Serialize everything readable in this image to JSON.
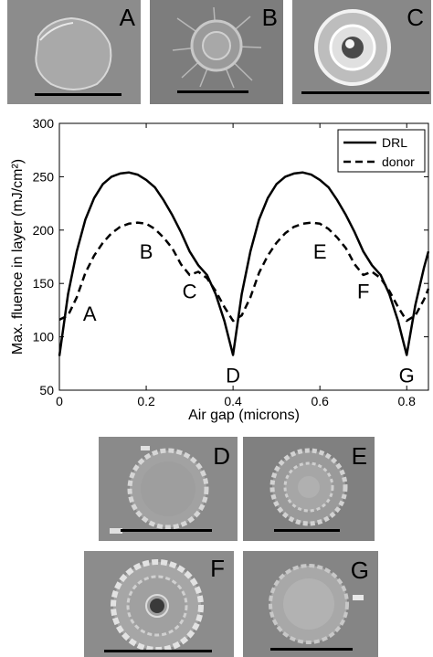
{
  "panels": {
    "A": {
      "label": "A"
    },
    "B": {
      "label": "B"
    },
    "C": {
      "label": "C"
    },
    "D": {
      "label": "D"
    },
    "E": {
      "label": "E"
    },
    "F": {
      "label": "F"
    },
    "G": {
      "label": "G"
    }
  },
  "chart_data": {
    "type": "line",
    "xlabel": "Air gap (microns)",
    "ylabel": "Max. fluence in layer (mJ/cm²)",
    "xlim": [
      0,
      0.85
    ],
    "ylim": [
      50,
      300
    ],
    "xticks": [
      "0",
      "0.2",
      "0.4",
      "0.6",
      "0.8"
    ],
    "xtick_values": [
      0,
      0.2,
      0.4,
      0.6,
      0.8
    ],
    "yticks": [
      "50",
      "100",
      "150",
      "200",
      "250",
      "300"
    ],
    "ytick_values": [
      50,
      100,
      150,
      200,
      250,
      300
    ],
    "legend_position": "top-right",
    "series": [
      {
        "name": "DRL",
        "style": "solid",
        "x": [
          0,
          0.02,
          0.04,
          0.06,
          0.08,
          0.1,
          0.12,
          0.14,
          0.16,
          0.18,
          0.2,
          0.22,
          0.24,
          0.26,
          0.28,
          0.3,
          0.32,
          0.34,
          0.36,
          0.38,
          0.4,
          0.42,
          0.44,
          0.46,
          0.48,
          0.5,
          0.52,
          0.54,
          0.56,
          0.58,
          0.6,
          0.62,
          0.64,
          0.66,
          0.68,
          0.7,
          0.72,
          0.74,
          0.76,
          0.78,
          0.8,
          0.82,
          0.84,
          0.85
        ],
        "y": [
          82,
          140,
          180,
          210,
          230,
          243,
          250,
          253,
          254,
          252,
          247,
          240,
          228,
          214,
          198,
          180,
          167,
          158,
          140,
          115,
          83,
          140,
          180,
          210,
          230,
          243,
          250,
          253,
          254,
          252,
          247,
          240,
          228,
          214,
          198,
          180,
          167,
          158,
          140,
          115,
          83,
          130,
          165,
          180
        ]
      },
      {
        "name": "donor",
        "style": "dashed",
        "x": [
          0,
          0.02,
          0.04,
          0.06,
          0.08,
          0.1,
          0.12,
          0.14,
          0.16,
          0.18,
          0.2,
          0.22,
          0.24,
          0.26,
          0.28,
          0.3,
          0.32,
          0.34,
          0.36,
          0.38,
          0.4,
          0.42,
          0.44,
          0.46,
          0.48,
          0.5,
          0.52,
          0.54,
          0.56,
          0.58,
          0.6,
          0.62,
          0.64,
          0.66,
          0.68,
          0.7,
          0.72,
          0.74,
          0.76,
          0.78,
          0.8,
          0.82,
          0.84,
          0.85
        ],
        "y": [
          116,
          120,
          137,
          160,
          176,
          188,
          197,
          203,
          206,
          207,
          206,
          201,
          193,
          183,
          168,
          158,
          161,
          155,
          143,
          128,
          115,
          120,
          137,
          160,
          176,
          188,
          197,
          203,
          206,
          207,
          206,
          201,
          193,
          183,
          168,
          158,
          161,
          155,
          143,
          128,
          115,
          120,
          135,
          145
        ]
      }
    ],
    "annotations": [
      {
        "text": "A",
        "x": 0.07,
        "y": 122
      },
      {
        "text": "B",
        "x": 0.2,
        "y": 180
      },
      {
        "text": "C",
        "x": 0.3,
        "y": 143
      },
      {
        "text": "D",
        "x": 0.4,
        "y": 64
      },
      {
        "text": "E",
        "x": 0.6,
        "y": 180
      },
      {
        "text": "F",
        "x": 0.7,
        "y": 143
      },
      {
        "text": "G",
        "x": 0.8,
        "y": 64
      }
    ]
  }
}
